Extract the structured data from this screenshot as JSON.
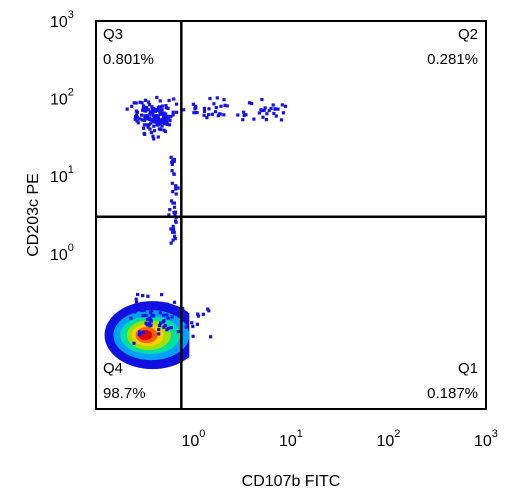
{
  "chart_data": {
    "type": "scatter",
    "subtype": "flow-cytometry-density-dot-plot",
    "xlabel": "CD107b FITC",
    "ylabel": "CD203c PE",
    "x_scale": "log",
    "y_scale": "log",
    "xlim": [
      0.1,
      1000
    ],
    "ylim": [
      0.01,
      1000
    ],
    "x_ticks": [
      {
        "base": "10",
        "exp": "0",
        "value": 1
      },
      {
        "base": "10",
        "exp": "1",
        "value": 10
      },
      {
        "base": "10",
        "exp": "2",
        "value": 100
      },
      {
        "base": "10",
        "exp": "3",
        "value": 1000
      }
    ],
    "y_ticks": [
      {
        "base": "10",
        "exp": "0",
        "value": 1
      },
      {
        "base": "10",
        "exp": "1",
        "value": 10
      },
      {
        "base": "10",
        "exp": "2",
        "value": 100
      },
      {
        "base": "10",
        "exp": "3",
        "value": 1000
      }
    ],
    "gate": {
      "x": 0.75,
      "y": 3.0
    },
    "quadrants": [
      {
        "name": "Q3",
        "percent": "0.801%",
        "position": "top-left"
      },
      {
        "name": "Q2",
        "percent": "0.281%",
        "position": "top-right"
      },
      {
        "name": "Q4",
        "percent": "98.7%",
        "position": "bottom-left"
      },
      {
        "name": "Q1",
        "percent": "0.187%",
        "position": "bottom-right"
      }
    ],
    "density_colors": [
      "#1010e0",
      "#00a0ff",
      "#00e0a0",
      "#a0e000",
      "#ffd000",
      "#ff6000",
      "#e00000"
    ],
    "point_color": "#1414e6",
    "frame_color": "#000000"
  }
}
